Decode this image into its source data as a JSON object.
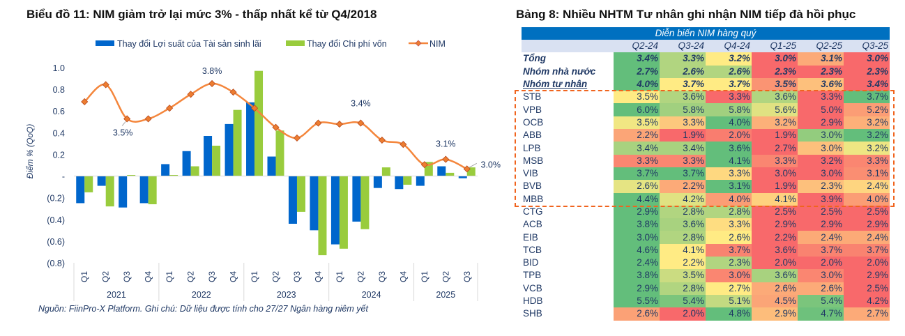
{
  "chart_data": {
    "type": "bar+line",
    "title": "Biểu đồ 11: NIM giảm trở lại mức 3% - thấp nhất kể từ Q4/2018",
    "ylabel": "Điểm % (QoQ)",
    "ylim": [
      -0.8,
      1.0
    ],
    "y_ticks": [
      {
        "value": 1.0,
        "label": "1.0"
      },
      {
        "value": 0.8,
        "label": "0.8"
      },
      {
        "value": 0.6,
        "label": "0.6"
      },
      {
        "value": 0.4,
        "label": "0.4"
      },
      {
        "value": 0.2,
        "label": "0.2"
      },
      {
        "value": 0,
        "label": "-"
      },
      {
        "value": -0.2,
        "label": "(0.2)"
      },
      {
        "value": -0.4,
        "label": "(0.4)"
      },
      {
        "value": -0.6,
        "label": "(0.6)"
      },
      {
        "value": -0.8,
        "label": "(0.8)"
      }
    ],
    "y2lim_hidden": [
      2.12,
      3.95
    ],
    "grid": false,
    "legend_position": "top",
    "years": [
      {
        "label": "2021",
        "quarters": [
          "Q1",
          "Q2",
          "Q3",
          "Q4"
        ]
      },
      {
        "label": "2022",
        "quarters": [
          "Q1",
          "Q2",
          "Q3",
          "Q4"
        ]
      },
      {
        "label": "2023",
        "quarters": [
          "Q1",
          "Q2",
          "Q3",
          "Q4"
        ]
      },
      {
        "label": "2024",
        "quarters": [
          "Q1",
          "Q2",
          "Q3",
          "Q4"
        ]
      },
      {
        "label": "2025",
        "quarters": [
          "Q1",
          "Q2",
          "Q3"
        ]
      }
    ],
    "series": [
      {
        "name": "Thay đổi Lợi suất của Tài sản sinh lãi",
        "type": "bar",
        "color": "#0066CC",
        "values": [
          -0.25,
          -0.09,
          -0.29,
          -0.25,
          0.11,
          0.23,
          0.37,
          0.48,
          0.68,
          0.18,
          -0.44,
          -0.5,
          -0.63,
          -0.42,
          -0.11,
          -0.12,
          -0.09,
          0.09,
          -0.02
        ]
      },
      {
        "name": "Thay đổi Chi phí vốn",
        "type": "bar",
        "color": "#99CC3D",
        "values": [
          -0.15,
          -0.28,
          0.01,
          -0.26,
          0.01,
          0.09,
          0.28,
          0.61,
          0.97,
          0.42,
          -0.33,
          -0.73,
          -0.67,
          -0.49,
          0.08,
          -0.08,
          0.13,
          0.03,
          0.08
        ]
      },
      {
        "name": "NIM",
        "type": "line",
        "axis": "secondary",
        "unit": "%",
        "color": "#F4863C",
        "values": [
          3.63,
          3.79,
          3.47,
          3.47,
          3.57,
          3.7,
          3.8,
          3.72,
          3.57,
          3.39,
          3.29,
          3.43,
          3.42,
          3.43,
          3.27,
          3.23,
          3.04,
          3.09,
          3.0
        ],
        "data_labels": [
          {
            "index": 2,
            "text": "3.5%"
          },
          {
            "index": 6,
            "text": "3.8%"
          },
          {
            "index": 13,
            "text": "3.4%"
          },
          {
            "index": 17,
            "text": "3.1%"
          },
          {
            "index": 18,
            "text": "3.0%"
          }
        ]
      }
    ]
  },
  "chart_footer": "Nguồn: FiinPro-X Platform. Ghi chú: Dữ liệu được tính cho 27/27 Ngân hàng niêm yết",
  "table": {
    "title": "Bảng 8: Nhiều NHTM Tư nhân ghi nhận NIM tiếp đà hồi phục",
    "band_header": "Diễn biến NIM hàng quý",
    "columns": [
      "Q2-24",
      "Q3-24",
      "Q4-24",
      "Q1-25",
      "Q2-25",
      "Q3-25"
    ],
    "color_scale": {
      "low": "#F8696B",
      "mid": "#FFEB84",
      "high": "#63BE7B"
    },
    "rows": [
      {
        "label": "Tổng",
        "aggregate": true,
        "values": [
          "3.4%",
          "3.3%",
          "3.2%",
          "3.0%",
          "3.1%",
          "3.0%"
        ]
      },
      {
        "label": "Nhóm nhà nước",
        "aggregate": true,
        "values": [
          "2.7%",
          "2.6%",
          "2.6%",
          "2.3%",
          "2.3%",
          "2.3%"
        ]
      },
      {
        "label": "Nhóm tư nhân",
        "aggregate": true,
        "underline": true,
        "values": [
          "4.0%",
          "3.7%",
          "3.7%",
          "3.5%",
          "3.6%",
          "3.4%"
        ]
      },
      {
        "label": "STB",
        "highlighted": true,
        "values": [
          "3.5%",
          "3.6%",
          "3.3%",
          "3.6%",
          "3.3%",
          "3.7%"
        ]
      },
      {
        "label": "VPB",
        "highlighted": true,
        "values": [
          "6.0%",
          "5.8%",
          "5.8%",
          "5.6%",
          "5.0%",
          "5.2%"
        ]
      },
      {
        "label": "OCB",
        "highlighted": true,
        "values": [
          "3.5%",
          "3.3%",
          "4.0%",
          "3.2%",
          "2.9%",
          "3.2%"
        ]
      },
      {
        "label": "ABB",
        "highlighted": true,
        "values": [
          "2.2%",
          "1.9%",
          "2.0%",
          "1.9%",
          "3.0%",
          "3.2%"
        ]
      },
      {
        "label": "LPB",
        "highlighted": true,
        "values": [
          "3.4%",
          "3.4%",
          "3.6%",
          "2.7%",
          "3.0%",
          "3.2%"
        ]
      },
      {
        "label": "MSB",
        "highlighted": true,
        "values": [
          "3.3%",
          "3.3%",
          "4.1%",
          "3.3%",
          "3.2%",
          "3.3%"
        ]
      },
      {
        "label": "VIB",
        "highlighted": true,
        "values": [
          "3.7%",
          "3.7%",
          "3.3%",
          "3.0%",
          "3.0%",
          "3.1%"
        ]
      },
      {
        "label": "BVB",
        "highlighted": true,
        "values": [
          "2.6%",
          "2.2%",
          "3.1%",
          "1.9%",
          "2.3%",
          "2.4%"
        ]
      },
      {
        "label": "MBB",
        "highlighted": true,
        "values": [
          "4.4%",
          "4.2%",
          "4.0%",
          "4.1%",
          "3.9%",
          "4.0%"
        ]
      },
      {
        "label": "CTG",
        "values": [
          "2.9%",
          "2.8%",
          "2.8%",
          "2.5%",
          "2.5%",
          "2.5%"
        ]
      },
      {
        "label": "ACB",
        "values": [
          "3.8%",
          "3.6%",
          "3.3%",
          "2.9%",
          "2.9%",
          "2.9%"
        ]
      },
      {
        "label": "EIB",
        "values": [
          "3.0%",
          "2.8%",
          "2.6%",
          "2.2%",
          "2.4%",
          "2.4%"
        ]
      },
      {
        "label": "TCB",
        "values": [
          "4.6%",
          "4.1%",
          "3.7%",
          "3.6%",
          "3.7%",
          "3.7%"
        ]
      },
      {
        "label": "BID",
        "values": [
          "2.4%",
          "2.2%",
          "2.3%",
          "2.0%",
          "2.0%",
          "2.0%"
        ]
      },
      {
        "label": "TPB",
        "values": [
          "3.8%",
          "3.5%",
          "3.0%",
          "3.6%",
          "3.0%",
          "2.9%"
        ]
      },
      {
        "label": "VCB",
        "values": [
          "2.9%",
          "2.8%",
          "2.7%",
          "2.6%",
          "2.6%",
          "2.5%"
        ]
      },
      {
        "label": "HDB",
        "values": [
          "5.5%",
          "5.4%",
          "5.1%",
          "4.5%",
          "5.4%",
          "4.2%"
        ]
      },
      {
        "label": "SHB",
        "values": [
          "2.6%",
          "2.0%",
          "4.8%",
          "2.9%",
          "4.7%",
          "2.7%"
        ]
      }
    ]
  }
}
